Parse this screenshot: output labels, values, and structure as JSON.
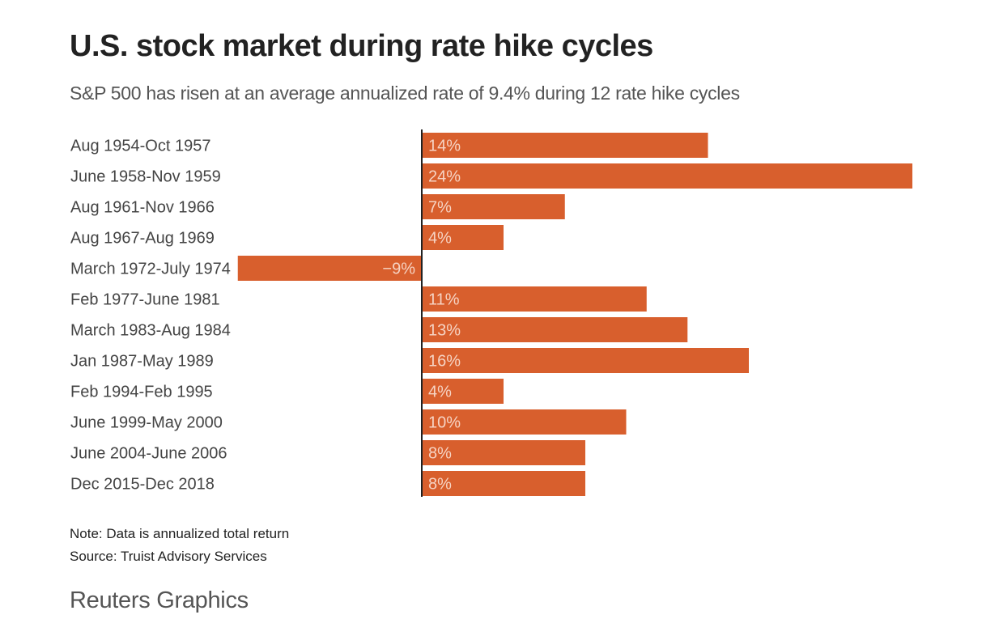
{
  "header": {
    "title": "U.S. stock market during rate hike cycles",
    "subtitle": "S&P 500 has risen at an average annualized rate of 9.4% during 12 rate hike cycles"
  },
  "footer": {
    "note": "Note: Data is annualized total return",
    "source": "Source: Truist Advisory Services",
    "brand": "Reuters Graphics"
  },
  "colors": {
    "bar": "#d85f2d",
    "bar_label": "#f6d3c3",
    "axis": "#222222"
  },
  "chart_data": {
    "type": "bar",
    "orientation": "horizontal",
    "title": "U.S. stock market during rate hike cycles",
    "subtitle": "S&P 500 has risen at an average annualized rate of 9.4% during 12 rate hike cycles",
    "xlabel": "",
    "ylabel": "",
    "unit": "%",
    "xlim": [
      -9,
      24
    ],
    "grid": false,
    "legend": "none",
    "categories": [
      "Aug 1954-Oct 1957",
      "June 1958-Nov 1959",
      "Aug 1961-Nov 1966",
      "Aug 1967-Aug 1969",
      "March 1972-July 1974",
      "Feb 1977-June 1981",
      "March 1983-Aug 1984",
      "Jan 1987-May 1989",
      "Feb 1994-Feb 1995",
      "June 1999-May 2000",
      "June 2004-June 2006",
      "Dec 2015-Dec 2018"
    ],
    "values": [
      14,
      24,
      7,
      4,
      -9,
      11,
      13,
      16,
      4,
      10,
      8,
      8
    ],
    "data_labels": [
      "14%",
      "24%",
      "7%",
      "4%",
      "−9%",
      "11%",
      "13%",
      "16%",
      "4%",
      "10%",
      "8%",
      "8%"
    ]
  }
}
